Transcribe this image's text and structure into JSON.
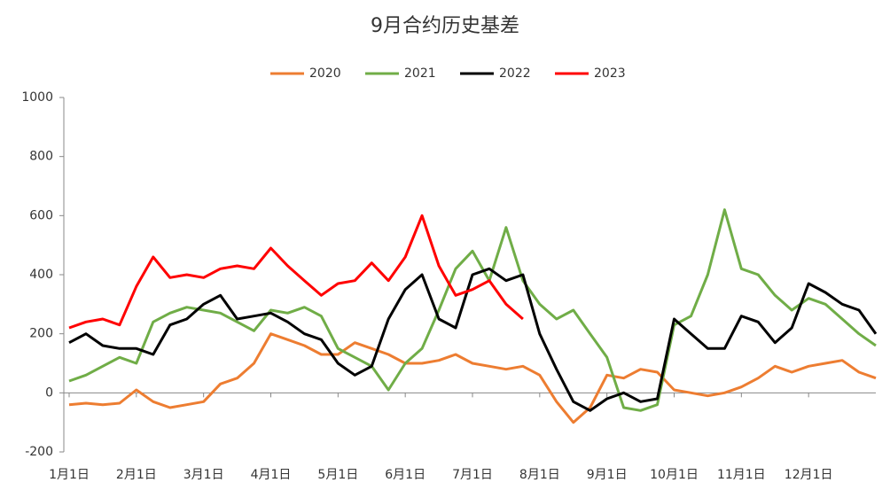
{
  "chart_data": {
    "type": "line",
    "title": "9月合约历史基差",
    "categories": [
      "1月1日",
      null,
      null,
      null,
      "2月1日",
      null,
      null,
      null,
      "3月1日",
      null,
      null,
      null,
      "4月1日",
      null,
      null,
      null,
      "5月1日",
      null,
      null,
      null,
      "6月1日",
      null,
      null,
      null,
      "7月1日",
      null,
      null,
      null,
      "8月1日",
      null,
      null,
      null,
      "9月1日",
      null,
      null,
      null,
      "10月1日",
      null,
      null,
      null,
      "11月1日",
      null,
      null,
      null,
      "12月1日",
      null,
      null,
      null,
      null
    ],
    "series": [
      {
        "name": "2020",
        "color": "#ed7d31",
        "values": [
          -40,
          -35,
          -40,
          -35,
          10,
          -30,
          -50,
          -40,
          -30,
          30,
          50,
          100,
          200,
          180,
          160,
          130,
          130,
          170,
          150,
          130,
          100,
          100,
          110,
          130,
          100,
          90,
          80,
          90,
          60,
          -30,
          -100,
          -50,
          60,
          50,
          80,
          70,
          10,
          0,
          -10,
          0,
          20,
          50,
          90,
          70,
          90,
          100,
          110,
          70,
          50
        ]
      },
      {
        "name": "2021",
        "color": "#70ad47",
        "values": [
          40,
          60,
          90,
          120,
          100,
          240,
          270,
          290,
          280,
          270,
          240,
          210,
          280,
          270,
          290,
          260,
          150,
          120,
          90,
          10,
          100,
          150,
          280,
          420,
          480,
          380,
          560,
          380,
          300,
          250,
          280,
          200,
          120,
          -50,
          -60,
          -40,
          230,
          260,
          400,
          620,
          420,
          400,
          330,
          280,
          320,
          300,
          250,
          200,
          160
        ]
      },
      {
        "name": "2022",
        "color": "#000000",
        "values": [
          170,
          200,
          160,
          150,
          150,
          130,
          230,
          250,
          300,
          330,
          250,
          260,
          270,
          240,
          200,
          180,
          100,
          60,
          90,
          250,
          350,
          400,
          250,
          220,
          400,
          420,
          380,
          400,
          200,
          80,
          -30,
          -60,
          -20,
          0,
          -30,
          -20,
          250,
          200,
          150,
          150,
          260,
          240,
          170,
          220,
          370,
          340,
          300,
          280,
          200
        ]
      },
      {
        "name": "2023",
        "color": "#ff0000",
        "values": [
          220,
          240,
          250,
          230,
          360,
          460,
          390,
          400,
          390,
          420,
          430,
          420,
          490,
          430,
          380,
          330,
          370,
          380,
          440,
          380,
          460,
          600,
          430,
          330,
          350,
          380,
          300,
          250,
          null,
          null,
          null,
          null,
          null,
          null,
          null,
          null,
          null,
          null,
          null,
          null,
          null,
          null,
          null,
          null,
          null,
          null,
          null,
          null,
          null
        ]
      }
    ],
    "ylim": [
      -200,
      1000
    ],
    "yticks": [
      -200,
      0,
      200,
      400,
      600,
      800,
      1000
    ],
    "grid": false,
    "legend": "top"
  }
}
